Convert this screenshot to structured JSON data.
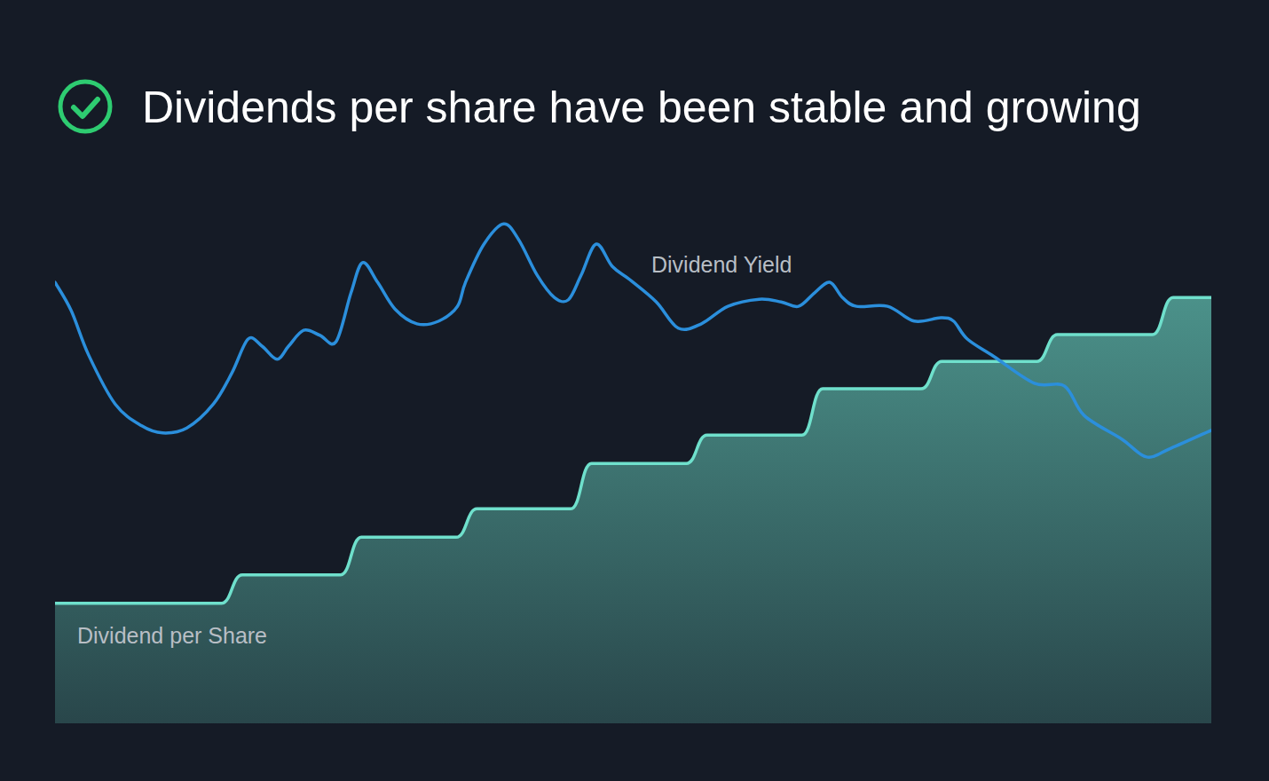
{
  "chart_data": {
    "type": "line",
    "title": "Dividends per share have been stable and growing",
    "xlim": [
      0,
      100
    ],
    "ylim": [
      0,
      100
    ],
    "xticks": [],
    "yticks": [],
    "grid": false,
    "tick_labels": false,
    "series": [
      {
        "name": "Dividend Yield",
        "type": "line",
        "line_style": "smooth",
        "color": "#2b8fdc",
        "x": [
          0,
          1.4,
          2.9,
          5.2,
          7.5,
          9.3,
          11.4,
          13.7,
          15.3,
          16.7,
          17.9,
          19.2,
          20.2,
          21.5,
          22.9,
          24.3,
          25.6,
          26.6,
          27.9,
          29.4,
          31.3,
          33.2,
          34.8,
          35.5,
          37.1,
          38.8,
          40.1,
          41.7,
          43.2,
          44.4,
          45.5,
          46.8,
          48.2,
          49.7,
          52.0,
          53.9,
          55.9,
          58.2,
          60.9,
          62.8,
          64.3,
          65.7,
          67.0,
          68.1,
          69.3,
          72.0,
          74.3,
          76.6,
          77.7,
          78.9,
          81.2,
          84.7,
          87.3,
          89.0,
          92.3,
          94.4,
          96.5,
          100
        ],
        "values": [
          80.8,
          75.6,
          67.5,
          58.5,
          54.5,
          53.2,
          54.1,
          58.5,
          64.2,
          70.4,
          69.1,
          66.7,
          69.1,
          72.0,
          71.1,
          69.9,
          78.9,
          84.4,
          80.8,
          75.9,
          73.2,
          73.7,
          76.4,
          80.8,
          87.8,
          91.5,
          88.6,
          82.1,
          78.0,
          77.6,
          82.1,
          87.8,
          83.7,
          81.3,
          77.2,
          72.4,
          73.2,
          76.4,
          77.7,
          77.2,
          76.4,
          78.9,
          80.8,
          78.0,
          76.4,
          76.4,
          73.7,
          74.3,
          73.7,
          70.4,
          67.2,
          62.3,
          61.8,
          56.4,
          52.0,
          48.8,
          50.4,
          53.7
        ]
      },
      {
        "name": "Dividend per Share",
        "type": "area",
        "line_style": "step",
        "color": "#6fe0cc",
        "x": [
          0,
          15.3,
          25.6,
          35.6,
          45.5,
          55.5,
          65.5,
          75.8,
          85.8,
          95.8
        ],
        "values": [
          22.0,
          27.2,
          34.1,
          39.3,
          47.6,
          52.8,
          61.3,
          66.3,
          71.2,
          78.0
        ]
      }
    ]
  }
}
